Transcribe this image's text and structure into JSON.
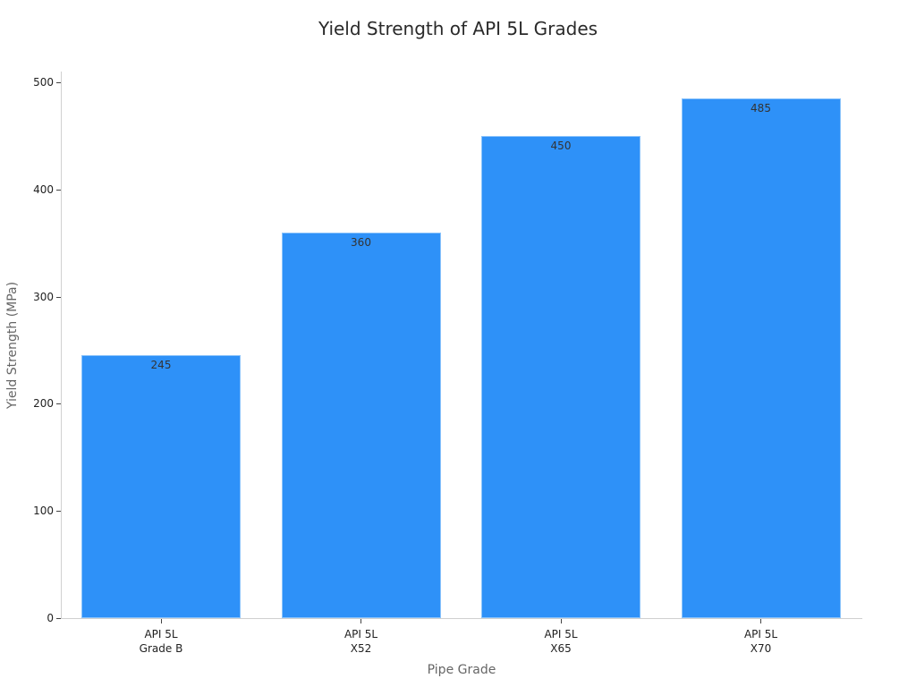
{
  "chart_data": {
    "type": "bar",
    "title": "Yield Strength of API 5L Grades",
    "xlabel": "Pipe Grade",
    "ylabel": "Yield Strength (MPa)",
    "categories": [
      "API 5L\nGrade B",
      "API 5L\nX52",
      "API 5L\nX65",
      "API 5L\nX70"
    ],
    "values": [
      245,
      360,
      450,
      485
    ],
    "data_labels": [
      "245",
      "360",
      "450",
      "485"
    ],
    "ylim": [
      0,
      510
    ],
    "yticks": [
      0,
      100,
      200,
      300,
      400,
      500
    ],
    "ytick_labels": [
      "0",
      "100",
      "200",
      "300",
      "400",
      "500"
    ],
    "grid": false,
    "legend": null,
    "bar_color": "#2e91f8"
  }
}
